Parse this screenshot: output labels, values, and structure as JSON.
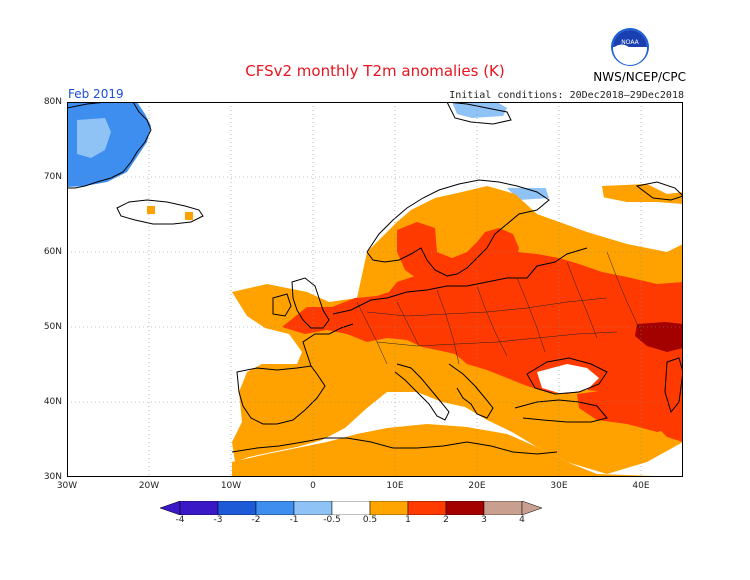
{
  "header": {
    "title": "CFSv2 monthly T2m anomalies (K)",
    "agency": "NWS/NCEP/CPC",
    "logo_text": "NOAA",
    "month": "Feb 2019",
    "initial_conditions": "Initial conditions: 20Dec2018–29Dec2018"
  },
  "map": {
    "lat_labels": [
      "80N",
      "70N",
      "60N",
      "50N",
      "40N",
      "30N"
    ],
    "lon_labels": [
      "30W",
      "20W",
      "10W",
      "0",
      "10E",
      "20E",
      "30E",
      "40E"
    ]
  },
  "colorbar": {
    "labels": [
      "-4",
      "-3",
      "-2",
      "-1",
      "-0.5",
      "0.5",
      "1",
      "2",
      "3",
      "4"
    ],
    "colors": [
      "#3a18c6",
      "#1c5ad8",
      "#3e8ef0",
      "#8fc2f5",
      "#ffffff",
      "#ffa500",
      "#ff3b00",
      "#a50000",
      "#c9a08f"
    ]
  },
  "palette": {
    "warm_weak": "#ffa200",
    "warm_strong": "#ff3a00",
    "warm_extreme": "#a30000",
    "cool_weak": "#8fc2f5",
    "cool_mid": "#3e8ef0",
    "title_red": "#e8141e",
    "label_blue": "#1a4fd6"
  }
}
